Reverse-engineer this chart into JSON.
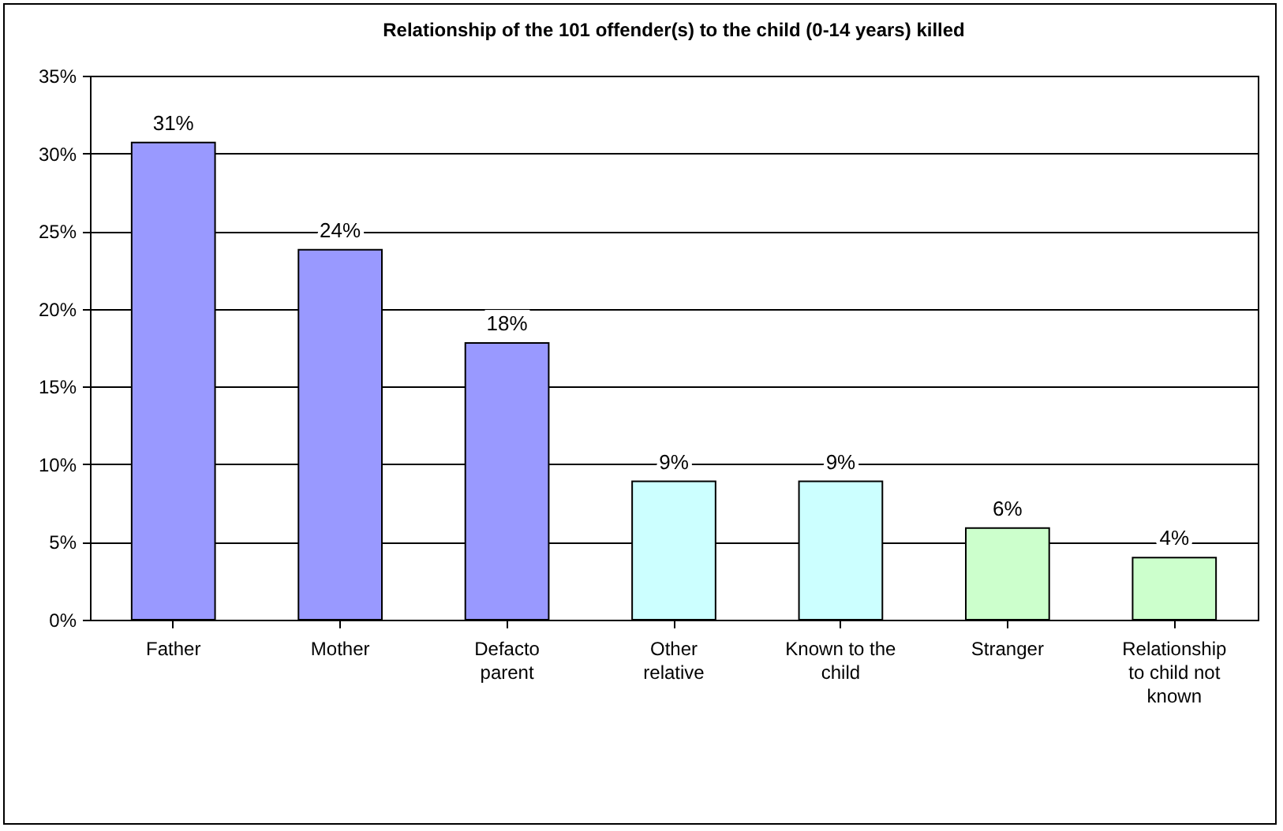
{
  "chart_data": {
    "type": "bar",
    "title": "Relationship of the 101 offender(s) to the child (0-14 years) killed",
    "categories": [
      "Father",
      "Mother",
      "Defacto parent",
      "Other relative",
      "Known to the child",
      "Stranger",
      "Relationship to child not known"
    ],
    "values": [
      30.7,
      23.8,
      17.8,
      8.9,
      8.9,
      5.9,
      4.0
    ],
    "colors": [
      "#9999ff",
      "#9999ff",
      "#9999ff",
      "#ccffff",
      "#ccffff",
      "#ccffcc",
      "#ccffcc"
    ],
    "value_labels": [
      "31%",
      "24%",
      "18%",
      "9%",
      "9%",
      "6%",
      "4%"
    ],
    "ylim": [
      0,
      35
    ],
    "yticks": [
      {
        "value": 0,
        "label": "0%"
      },
      {
        "value": 5,
        "label": "5%"
      },
      {
        "value": 10,
        "label": "10%"
      },
      {
        "value": 15,
        "label": "15%"
      },
      {
        "value": 20,
        "label": "20%"
      },
      {
        "value": 25,
        "label": "25%"
      },
      {
        "value": 30,
        "label": "30%"
      },
      {
        "value": 35,
        "label": "35%"
      }
    ],
    "grid": "y"
  }
}
